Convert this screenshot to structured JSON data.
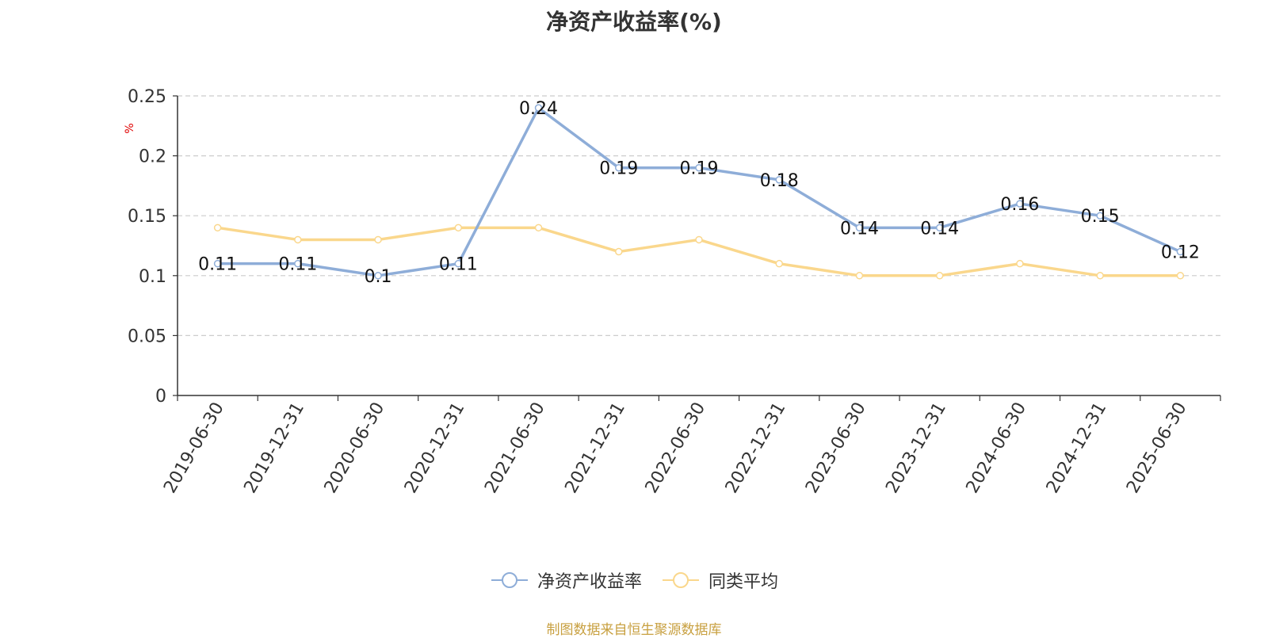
{
  "chart_data": {
    "type": "line",
    "title": "净资产收益率(%)",
    "ylabel": "%",
    "categories": [
      "2019-06-30",
      "2019-12-31",
      "2020-06-30",
      "2020-12-31",
      "2021-06-30",
      "2021-12-31",
      "2022-06-30",
      "2022-12-31",
      "2023-06-30",
      "2023-12-31",
      "2024-06-30",
      "2024-12-31",
      "2025-06-30"
    ],
    "yticks": [
      "0",
      "0.05",
      "0.1",
      "0.15",
      "0.2",
      "0.25"
    ],
    "ylim": [
      0,
      0.25
    ],
    "grid": true,
    "legend_position": "bottom",
    "series": [
      {
        "name": "净资产收益率",
        "color": "#8eadd8",
        "values": [
          0.11,
          0.11,
          0.1,
          0.11,
          0.24,
          0.19,
          0.19,
          0.18,
          0.14,
          0.14,
          0.16,
          0.15,
          0.12
        ],
        "labels": [
          "0.11",
          "0.11",
          "0.1",
          "0.11",
          "0.24",
          "0.19",
          "0.19",
          "0.18",
          "0.14",
          "0.14",
          "0.16",
          "0.15",
          "0.12"
        ]
      },
      {
        "name": "同类平均",
        "color": "#fad78c",
        "values": [
          0.14,
          0.13,
          0.13,
          0.14,
          0.14,
          0.12,
          0.13,
          0.11,
          0.1,
          0.1,
          0.11,
          0.1,
          0.1
        ]
      }
    ]
  },
  "source": "制图数据来自恒生聚源数据库"
}
